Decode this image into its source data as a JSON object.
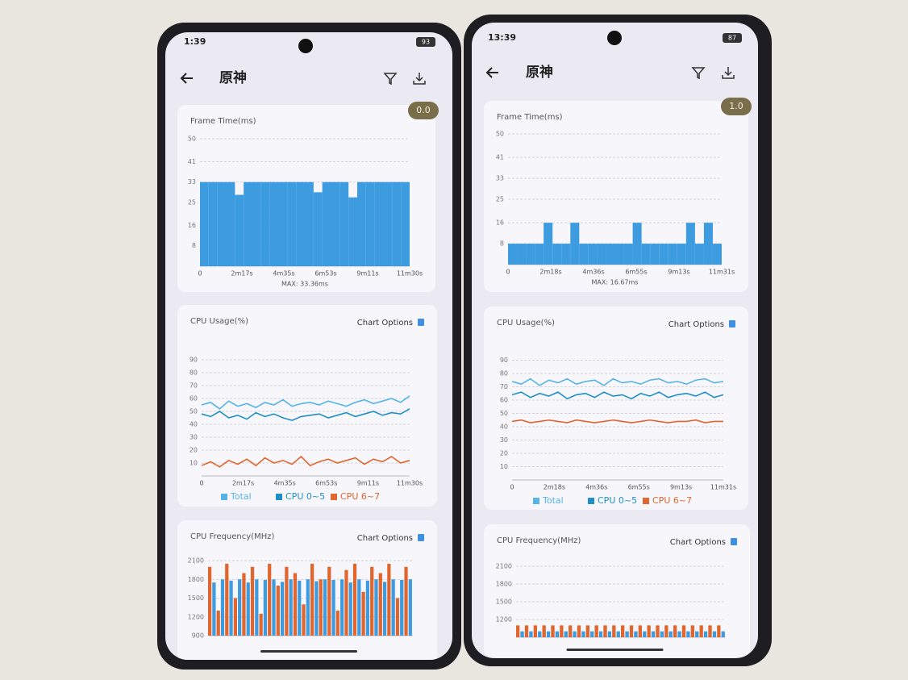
{
  "phones": [
    {
      "status": {
        "time": "1:39",
        "battery": "93"
      },
      "header": {
        "title": "原神"
      },
      "frame_time": {
        "type": "bar",
        "title": "Frame Time(ms)",
        "badge": "0.0",
        "ylim": [
          0,
          50
        ],
        "yticks": [
          8,
          16,
          25,
          33,
          41,
          50
        ],
        "x_labels": [
          0,
          "2m17s",
          "4m35s",
          "6m53s",
          "9m11s",
          "11m30s"
        ],
        "footer": "MAX: 33.36ms",
        "series": [
          {
            "color": "#3d9be0",
            "values": [
              33,
              33,
              33,
              33,
              28,
              33,
              33,
              33,
              33,
              33,
              33,
              33,
              33,
              29,
              33,
              33,
              33,
              27,
              33,
              33,
              33,
              33,
              33,
              33
            ]
          }
        ]
      },
      "cpu_usage": {
        "type": "line",
        "title": "CPU Usage(%)",
        "options_label": "Chart Options",
        "ylim": [
          0,
          100
        ],
        "yticks": [
          10,
          20,
          30,
          40,
          50,
          60,
          70,
          80,
          90
        ],
        "x_labels": [
          0,
          "2m17s",
          "4m35s",
          "6m53s",
          "9m11s",
          "11m30s"
        ],
        "series": [
          {
            "name": "Total",
            "color": "#56b4e9",
            "values": [
              55,
              57,
              52,
              58,
              54,
              56,
              53,
              57,
              55,
              59,
              54,
              56,
              57,
              55,
              58,
              56,
              54,
              57,
              59,
              56,
              58,
              60,
              57,
              62
            ]
          },
          {
            "name": "CPU 0~5",
            "color": "#1f8fc9",
            "values": [
              48,
              46,
              50,
              45,
              47,
              44,
              49,
              46,
              48,
              45,
              43,
              46,
              47,
              48,
              45,
              47,
              49,
              46,
              48,
              50,
              47,
              49,
              48,
              52
            ]
          },
          {
            "name": "CPU 6~7",
            "color": "#e0662e",
            "values": [
              8,
              11,
              7,
              12,
              9,
              13,
              8,
              14,
              10,
              12,
              9,
              15,
              8,
              11,
              13,
              10,
              12,
              14,
              9,
              13,
              11,
              15,
              10,
              12
            ]
          }
        ]
      },
      "cpu_frequency": {
        "type": "bar",
        "title": "CPU Frequency(MHz)",
        "options_label": "Chart Options",
        "ylim": [
          900,
          2100
        ],
        "yticks": [
          900,
          1200,
          1500,
          1800,
          2100
        ],
        "series": [
          {
            "color": "#e0662e",
            "values": [
              2000,
              1300,
              2050,
              1500,
              1900,
              2000,
              1250,
              2050,
              1700,
              2000,
              1900,
              1400,
              2050,
              1800,
              2000,
              1300,
              1950,
              2050,
              1600,
              2000,
              1900,
              2050,
              1500,
              2000
            ]
          },
          {
            "color": "#3d9be0",
            "values": [
              1750,
              1800,
              1780,
              1800,
              1750,
              1800,
              1790,
              1800,
              1760,
              1800,
              1780,
              1800,
              1770,
              1800,
              1790,
              1800,
              1750,
              1800,
              1780,
              1800,
              1760,
              1800,
              1790,
              1800
            ]
          }
        ]
      }
    },
    {
      "status": {
        "time": "13:39",
        "battery": "87"
      },
      "header": {
        "title": "原神"
      },
      "frame_time": {
        "type": "bar",
        "title": "Frame Time(ms)",
        "badge": "1.0",
        "ylim": [
          0,
          50
        ],
        "yticks": [
          8,
          16,
          25,
          33,
          41,
          50
        ],
        "x_labels": [
          0,
          "2m18s",
          "4m36s",
          "6m55s",
          "9m13s",
          "11m31s"
        ],
        "footer": "MAX: 16.67ms",
        "series": [
          {
            "color": "#3d9be0",
            "values": [
              8,
              8,
              8,
              8,
              16,
              8,
              8,
              16,
              8,
              8,
              8,
              8,
              8,
              8,
              16,
              8,
              8,
              8,
              8,
              8,
              16,
              8,
              16,
              8
            ]
          }
        ]
      },
      "cpu_usage": {
        "type": "line",
        "title": "CPU Usage(%)",
        "options_label": "Chart Options",
        "ylim": [
          0,
          100
        ],
        "yticks": [
          10,
          20,
          30,
          40,
          50,
          60,
          70,
          80,
          90
        ],
        "x_labels": [
          0,
          "2m18s",
          "4m36s",
          "6m55s",
          "9m13s",
          "11m31s"
        ],
        "series": [
          {
            "name": "Total",
            "color": "#56b4e9",
            "values": [
              74,
              72,
              76,
              71,
              75,
              73,
              76,
              72,
              74,
              75,
              71,
              76,
              73,
              74,
              72,
              75,
              76,
              73,
              74,
              72,
              75,
              76,
              73,
              74
            ]
          },
          {
            "name": "CPU 0~5",
            "color": "#1f8fc9",
            "values": [
              64,
              66,
              62,
              65,
              63,
              66,
              61,
              64,
              65,
              62,
              66,
              63,
              64,
              61,
              65,
              63,
              66,
              62,
              64,
              65,
              63,
              66,
              62,
              64
            ]
          },
          {
            "name": "CPU 6~7",
            "color": "#e0662e",
            "values": [
              44,
              45,
              43,
              44,
              45,
              44,
              43,
              45,
              44,
              43,
              44,
              45,
              44,
              43,
              44,
              45,
              44,
              43,
              44,
              44,
              45,
              43,
              44,
              44
            ]
          }
        ]
      },
      "cpu_frequency": {
        "type": "bar",
        "title": "CPU Frequency(MHz)",
        "options_label": "Chart Options",
        "ylim": [
          900,
          2100
        ],
        "yticks": [
          1200,
          1500,
          1800,
          2100
        ],
        "series": [
          {
            "color": "#e0662e",
            "values": [
              1100,
              1100,
              1100,
              1100,
              1100,
              1100,
              1100,
              1100,
              1100,
              1100,
              1100,
              1100,
              1100,
              1100,
              1100,
              1100,
              1100,
              1100,
              1100,
              1100,
              1100,
              1100,
              1100,
              1100
            ]
          },
          {
            "color": "#3d9be0",
            "values": [
              1000,
              1000,
              1000,
              1000,
              1000,
              1000,
              1000,
              1000,
              1000,
              1000,
              1000,
              1000,
              1000,
              1000,
              1000,
              1000,
              1000,
              1000,
              1000,
              1000,
              1000,
              1000,
              1000,
              1000
            ]
          }
        ]
      }
    }
  ]
}
